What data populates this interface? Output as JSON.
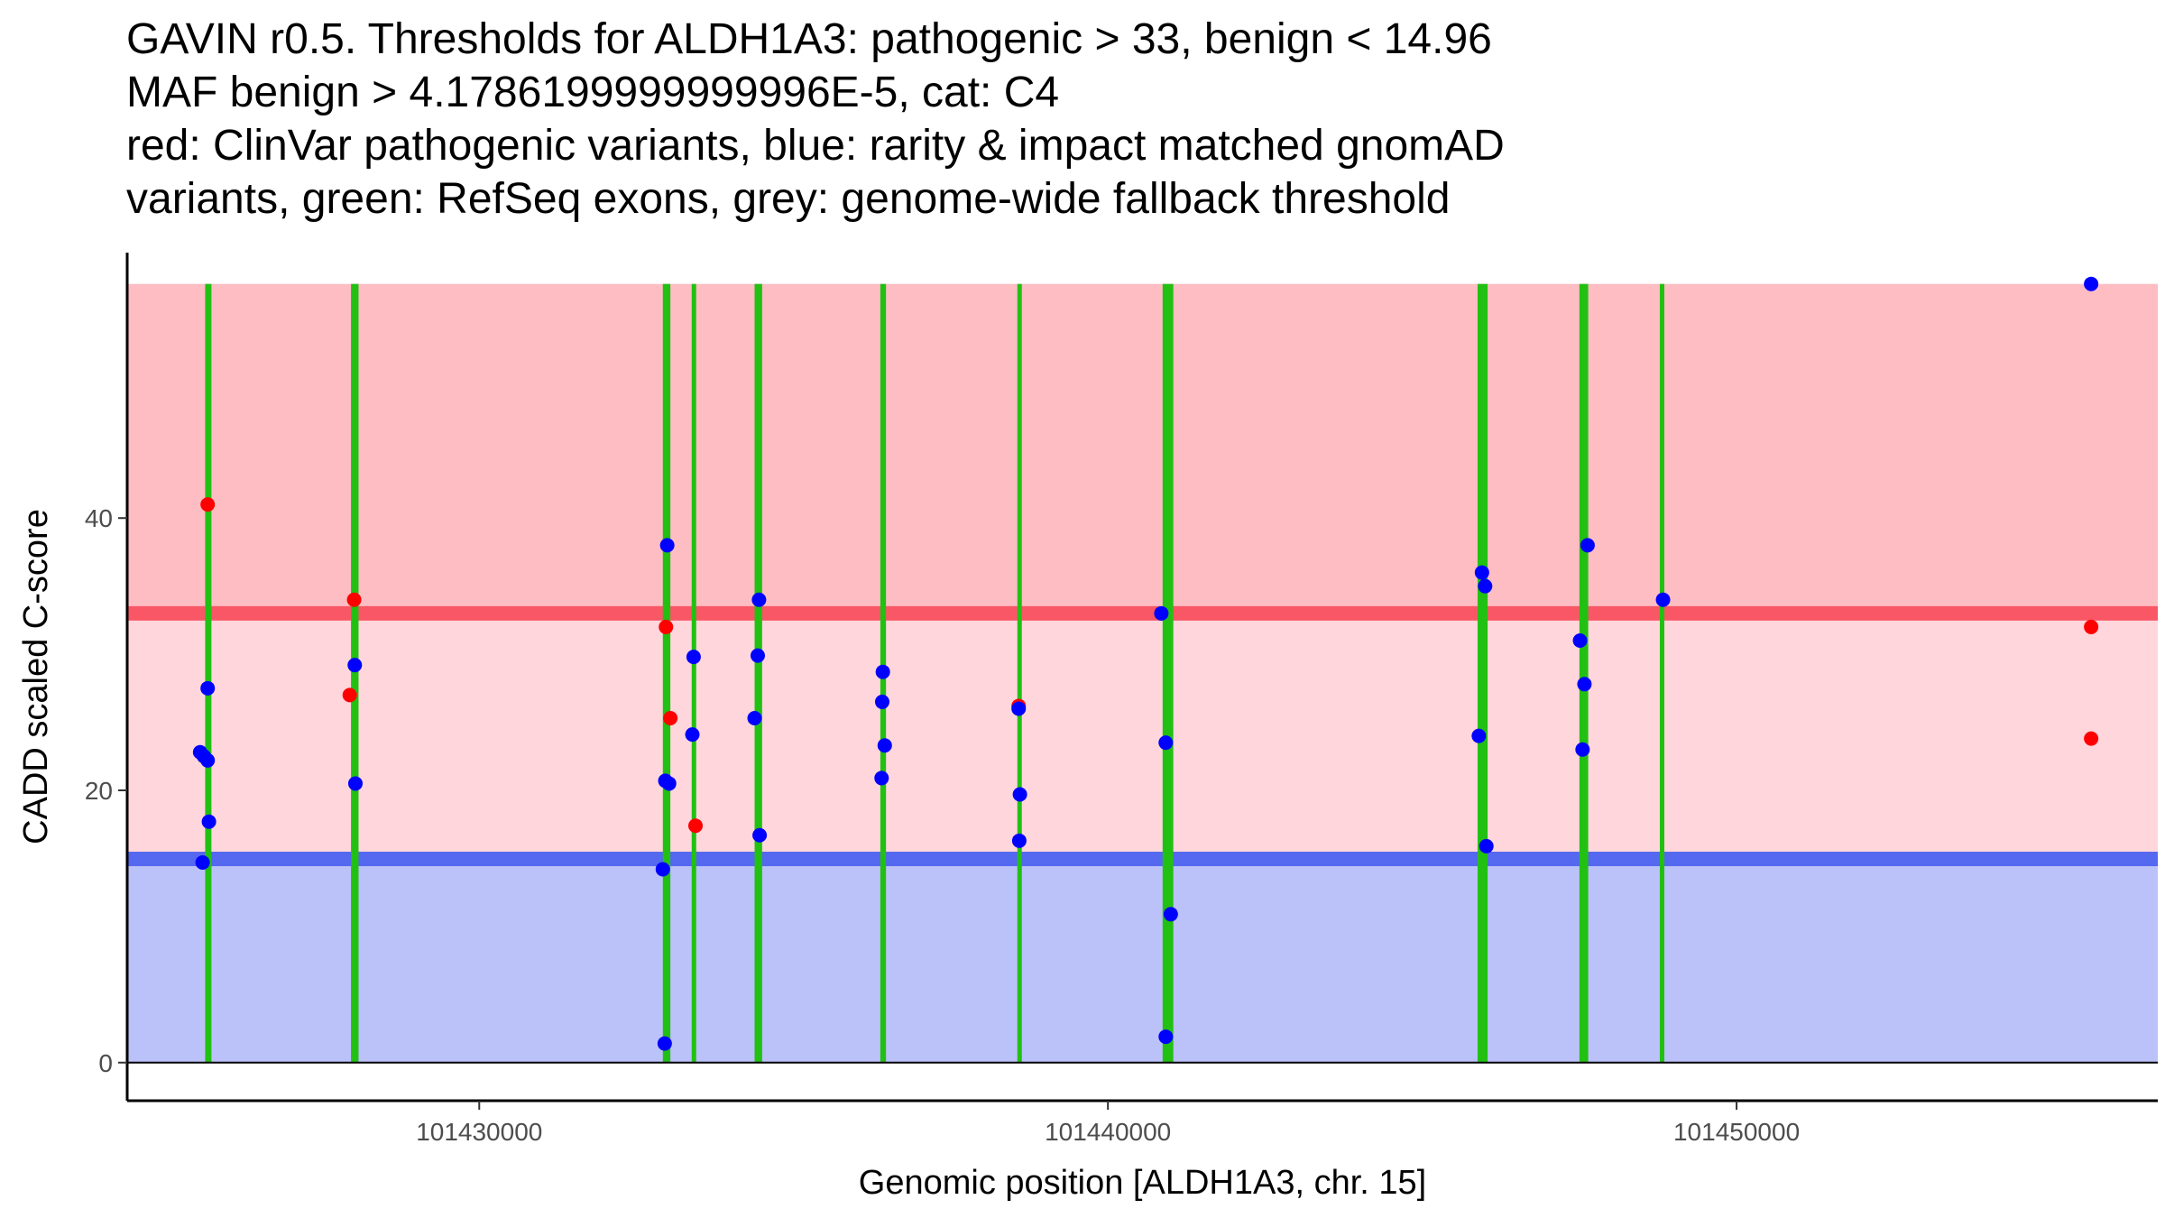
{
  "chart_data": {
    "type": "scatter",
    "title_lines": [
      "GAVIN r0.5. Thresholds for ALDH1A3: pathogenic > 33, benign < 14.96",
      "MAF benign > 4.1786199999999996E-5, cat: C4",
      "red: ClinVar pathogenic variants, blue: rarity & impact matched gnomAD",
      "variants, green: RefSeq exons, grey: genome-wide fallback threshold"
    ],
    "xlabel": "Genomic position [ALDH1A3, chr. 15]",
    "ylabel": "CADD scaled C-score",
    "xlim": [
      101424400,
      101456700
    ],
    "ylim": [
      -2.8,
      59.5
    ],
    "x_ticks": [
      101430000,
      101440000,
      101450000
    ],
    "x_tick_labels": [
      "101430000",
      "101440000",
      "101450000"
    ],
    "y_ticks": [
      0,
      20,
      40
    ],
    "y_tick_labels": [
      "0",
      "20",
      "40"
    ],
    "regions": [
      {
        "name": "pathogenic-region",
        "y0": 33,
        "y1": 57.2,
        "color": "#fdbdc3"
      },
      {
        "name": "uncertain-region",
        "y0": 14.96,
        "y1": 33,
        "color": "#ffd6dc"
      },
      {
        "name": "benign-region",
        "y0": 0,
        "y1": 14.96,
        "color": "#bbc1f9"
      }
    ],
    "threshold_lines": [
      {
        "name": "pathogenic-threshold",
        "y": 33,
        "color": "#f95766"
      },
      {
        "name": "benign-threshold",
        "y": 14.96,
        "color": "#5468f0"
      }
    ],
    "exons": [
      {
        "start": 101425640,
        "end": 101425740
      },
      {
        "start": 101427960,
        "end": 101428080
      },
      {
        "start": 101432920,
        "end": 101433040
      },
      {
        "start": 101433390,
        "end": 101433440
      },
      {
        "start": 101434380,
        "end": 101434500
      },
      {
        "start": 101436380,
        "end": 101436470
      },
      {
        "start": 101438560,
        "end": 101438630
      },
      {
        "start": 101440870,
        "end": 101441040
      },
      {
        "start": 101445880,
        "end": 101446040
      },
      {
        "start": 101447500,
        "end": 101447640
      },
      {
        "start": 101448790,
        "end": 101448840
      }
    ],
    "exon_color": "#22c013",
    "series": [
      {
        "name": "ClinVar pathogenic variants",
        "color": "#ff0000",
        "x": [
          101425680,
          101428010,
          101427940,
          101432970,
          101433040,
          101433440,
          101438580,
          101455640,
          101455640
        ],
        "y": [
          41,
          34,
          27,
          32,
          25.3,
          17.4,
          26.2,
          32,
          23.8
        ]
      },
      {
        "name": "rarity & impact matched gnomAD variants",
        "color": "#0000ff",
        "x": [
          101425560,
          101425680,
          101425620,
          101425680,
          101425700,
          101425600,
          101428020,
          101428030,
          101432990,
          101432960,
          101433020,
          101432920,
          101432950,
          101433410,
          101433390,
          101434450,
          101434430,
          101434380,
          101434460,
          101436420,
          101436410,
          101436450,
          101436400,
          101438580,
          101438600,
          101438590,
          101440850,
          101440920,
          101441000,
          101440920,
          101445950,
          101446000,
          101445900,
          101446020,
          101447510,
          101447630,
          101447580,
          101447550,
          101448830,
          101455640
        ],
        "y": [
          22.8,
          27.5,
          22.5,
          22.2,
          17.7,
          14.7,
          29.2,
          20.5,
          38,
          20.7,
          20.5,
          14.2,
          1.4,
          29.8,
          24.1,
          34,
          29.9,
          25.3,
          16.7,
          28.7,
          26.5,
          23.3,
          20.9,
          26,
          19.7,
          16.3,
          33,
          23.5,
          10.9,
          1.9,
          36,
          35,
          24,
          15.9,
          31,
          38,
          27.8,
          23,
          34,
          57.2
        ]
      }
    ]
  }
}
